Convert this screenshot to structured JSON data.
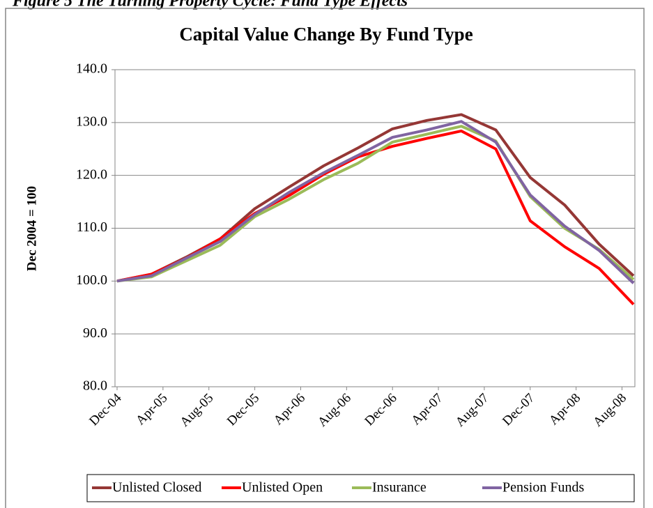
{
  "figure_caption": "Figure 5 The Turning Property Cycle: Fund Type Effects",
  "chart_data": {
    "type": "line",
    "title": "Capital Value Change By Fund Type",
    "y_label": "Dec 2004 = 100",
    "x": [
      "2004-12",
      "2005-03",
      "2005-06",
      "2005-09",
      "2005-12",
      "2006-03",
      "2006-06",
      "2006-09",
      "2006-12",
      "2007-03",
      "2007-06",
      "2007-09",
      "2007-12",
      "2008-03",
      "2008-06",
      "2008-09"
    ],
    "xlim": [
      "2004-12",
      "2008-09"
    ],
    "xticks": [
      {
        "value": "2004-12",
        "label": "Dec-04"
      },
      {
        "value": "2005-04",
        "label": "Apr-05"
      },
      {
        "value": "2005-08",
        "label": "Aug-05"
      },
      {
        "value": "2005-12",
        "label": "Dec-05"
      },
      {
        "value": "2006-04",
        "label": "Apr-06"
      },
      {
        "value": "2006-08",
        "label": "Aug-06"
      },
      {
        "value": "2006-12",
        "label": "Dec-06"
      },
      {
        "value": "2007-04",
        "label": "Apr-07"
      },
      {
        "value": "2007-08",
        "label": "Aug-07"
      },
      {
        "value": "2007-12",
        "label": "Dec-07"
      },
      {
        "value": "2008-04",
        "label": "Apr-08"
      },
      {
        "value": "2008-08",
        "label": "Aug-08"
      }
    ],
    "ylim": [
      80,
      140
    ],
    "yticks": [
      {
        "value": 80,
        "label": "80.0"
      },
      {
        "value": 90,
        "label": "90.0"
      },
      {
        "value": 100,
        "label": "100.0"
      },
      {
        "value": 110,
        "label": "110.0"
      },
      {
        "value": 120,
        "label": "120.0"
      },
      {
        "value": 130,
        "label": "130.0"
      },
      {
        "value": 140,
        "label": "140.0"
      }
    ],
    "grid": true,
    "legend": "bottom",
    "series": [
      {
        "name": "Unlisted Closed",
        "color": "#953735",
        "values": [
          100,
          101.3,
          104.5,
          108,
          113.7,
          117.8,
          121.8,
          125.2,
          128.8,
          130.4,
          131.5,
          128.6,
          119.6,
          114.4,
          107,
          101
        ]
      },
      {
        "name": "Unlisted Open",
        "color": "#ff0000",
        "values": [
          100,
          101.3,
          104.3,
          108,
          112.8,
          116.2,
          120.2,
          123.5,
          125.5,
          127,
          128.4,
          125,
          111.4,
          106.5,
          102.4,
          95.6
        ]
      },
      {
        "name": "Insurance",
        "color": "#9bbb59",
        "values": [
          100,
          100.8,
          103.8,
          106.8,
          112.2,
          115.5,
          119.2,
          122.3,
          126.3,
          127.8,
          129.3,
          126.5,
          116,
          110,
          106,
          100.3
        ]
      },
      {
        "name": "Pension Funds",
        "color": "#8064a2",
        "values": [
          100,
          101,
          104.3,
          107.5,
          112.6,
          116.8,
          120.5,
          123.8,
          127.2,
          128.6,
          130.2,
          126.3,
          116.3,
          110.4,
          105.8,
          99.6
        ]
      }
    ]
  }
}
